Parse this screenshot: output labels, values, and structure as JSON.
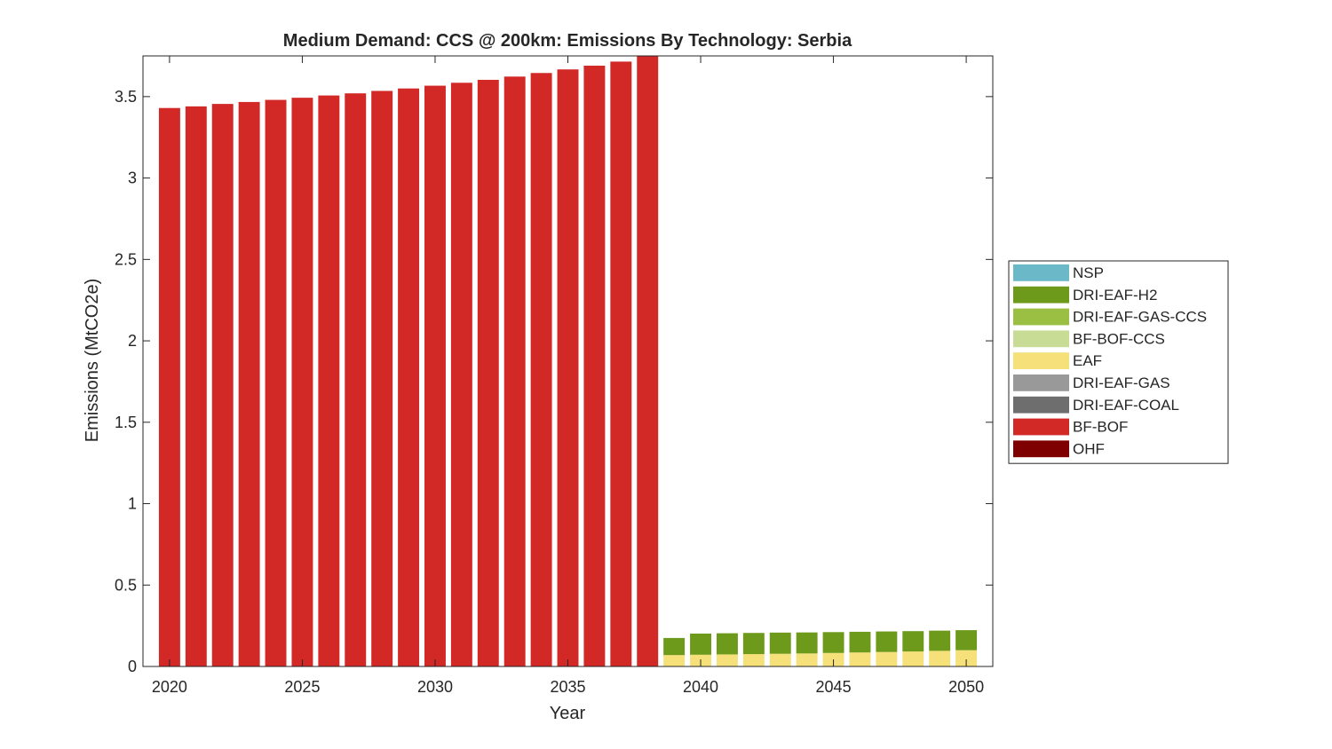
{
  "chart_data": {
    "type": "bar",
    "stacked": true,
    "title": "Medium Demand: CCS @ 200km: Emissions By Technology: Serbia",
    "xlabel": "Year",
    "ylabel": "Emissions (MtCO2e)",
    "xlim": [
      2019,
      2051
    ],
    "ylim": [
      0,
      3.75
    ],
    "xticks": [
      2020,
      2025,
      2030,
      2035,
      2040,
      2045,
      2050
    ],
    "xtick_labels": [
      "2020",
      "2025",
      "2030",
      "2035",
      "2040",
      "2045",
      "2050"
    ],
    "yticks": [
      0,
      0.5,
      1,
      1.5,
      2,
      2.5,
      3,
      3.5
    ],
    "ytick_labels": [
      "0",
      "0.5",
      "1",
      "1.5",
      "2",
      "2.5",
      "3",
      "3.5"
    ],
    "grid": false,
    "legend_position": "outside-right",
    "categories": [
      2020,
      2021,
      2022,
      2023,
      2024,
      2025,
      2026,
      2027,
      2028,
      2029,
      2030,
      2031,
      2032,
      2033,
      2034,
      2035,
      2036,
      2037,
      2038,
      2039,
      2040,
      2041,
      2042,
      2043,
      2044,
      2045,
      2046,
      2047,
      2048,
      2049,
      2050
    ],
    "series": [
      {
        "name": "OHF",
        "color": "#7f0000",
        "values": [
          0,
          0,
          0,
          0,
          0,
          0,
          0,
          0,
          0,
          0,
          0,
          0,
          0,
          0,
          0,
          0,
          0,
          0,
          0,
          0,
          0,
          0,
          0,
          0,
          0,
          0,
          0,
          0,
          0,
          0,
          0
        ]
      },
      {
        "name": "BF-BOF",
        "color": "#d22826",
        "values": [
          3.43,
          3.44,
          3.455,
          3.467,
          3.48,
          3.493,
          3.507,
          3.52,
          3.535,
          3.55,
          3.567,
          3.585,
          3.603,
          3.623,
          3.645,
          3.667,
          3.69,
          3.715,
          3.75,
          0,
          0,
          0,
          0,
          0,
          0,
          0,
          0,
          0,
          0,
          0,
          0
        ]
      },
      {
        "name": "DRI-EAF-COAL",
        "color": "#6e6e6e",
        "values": [
          0,
          0,
          0,
          0,
          0,
          0,
          0,
          0,
          0,
          0,
          0,
          0,
          0,
          0,
          0,
          0,
          0,
          0,
          0,
          0,
          0,
          0,
          0,
          0,
          0,
          0,
          0,
          0,
          0,
          0,
          0
        ]
      },
      {
        "name": "DRI-EAF-GAS",
        "color": "#999999",
        "values": [
          0,
          0,
          0,
          0,
          0,
          0,
          0,
          0,
          0,
          0,
          0,
          0,
          0,
          0,
          0,
          0,
          0,
          0,
          0,
          0,
          0,
          0,
          0,
          0,
          0,
          0,
          0,
          0,
          0,
          0,
          0
        ]
      },
      {
        "name": "EAF",
        "color": "#f5e07a",
        "values": [
          0,
          0,
          0,
          0,
          0,
          0,
          0,
          0,
          0,
          0,
          0,
          0,
          0,
          0,
          0,
          0,
          0,
          0,
          0,
          0.07,
          0.072,
          0.074,
          0.076,
          0.078,
          0.08,
          0.083,
          0.086,
          0.089,
          0.092,
          0.096,
          0.1
        ]
      },
      {
        "name": "BF-BOF-CCS",
        "color": "#c8dc96",
        "values": [
          0,
          0,
          0,
          0,
          0,
          0,
          0,
          0,
          0,
          0,
          0,
          0,
          0,
          0,
          0,
          0,
          0,
          0,
          0,
          0,
          0,
          0,
          0,
          0,
          0,
          0,
          0,
          0,
          0,
          0,
          0
        ]
      },
      {
        "name": "DRI-EAF-GAS-CCS",
        "color": "#9abf43",
        "values": [
          0,
          0,
          0,
          0,
          0,
          0,
          0,
          0,
          0,
          0,
          0,
          0,
          0,
          0,
          0,
          0,
          0,
          0,
          0,
          0,
          0,
          0,
          0,
          0,
          0,
          0,
          0,
          0,
          0,
          0,
          0
        ]
      },
      {
        "name": "DRI-EAF-H2",
        "color": "#6e9a1c",
        "values": [
          0,
          0,
          0,
          0,
          0,
          0,
          0,
          0,
          0,
          0,
          0,
          0,
          0,
          0,
          0,
          0,
          0,
          0,
          0,
          0.105,
          0.13,
          0.13,
          0.13,
          0.13,
          0.129,
          0.128,
          0.127,
          0.126,
          0.125,
          0.124,
          0.123
        ]
      },
      {
        "name": "NSP",
        "color": "#6ab8c8",
        "values": [
          0,
          0,
          0,
          0,
          0,
          0,
          0,
          0,
          0,
          0,
          0,
          0,
          0,
          0,
          0,
          0,
          0,
          0,
          0,
          0,
          0,
          0,
          0,
          0,
          0,
          0,
          0,
          0,
          0,
          0,
          0
        ]
      }
    ],
    "legend_order": [
      "NSP",
      "DRI-EAF-H2",
      "DRI-EAF-GAS-CCS",
      "BF-BOF-CCS",
      "EAF",
      "DRI-EAF-GAS",
      "DRI-EAF-COAL",
      "BF-BOF",
      "OHF"
    ]
  }
}
